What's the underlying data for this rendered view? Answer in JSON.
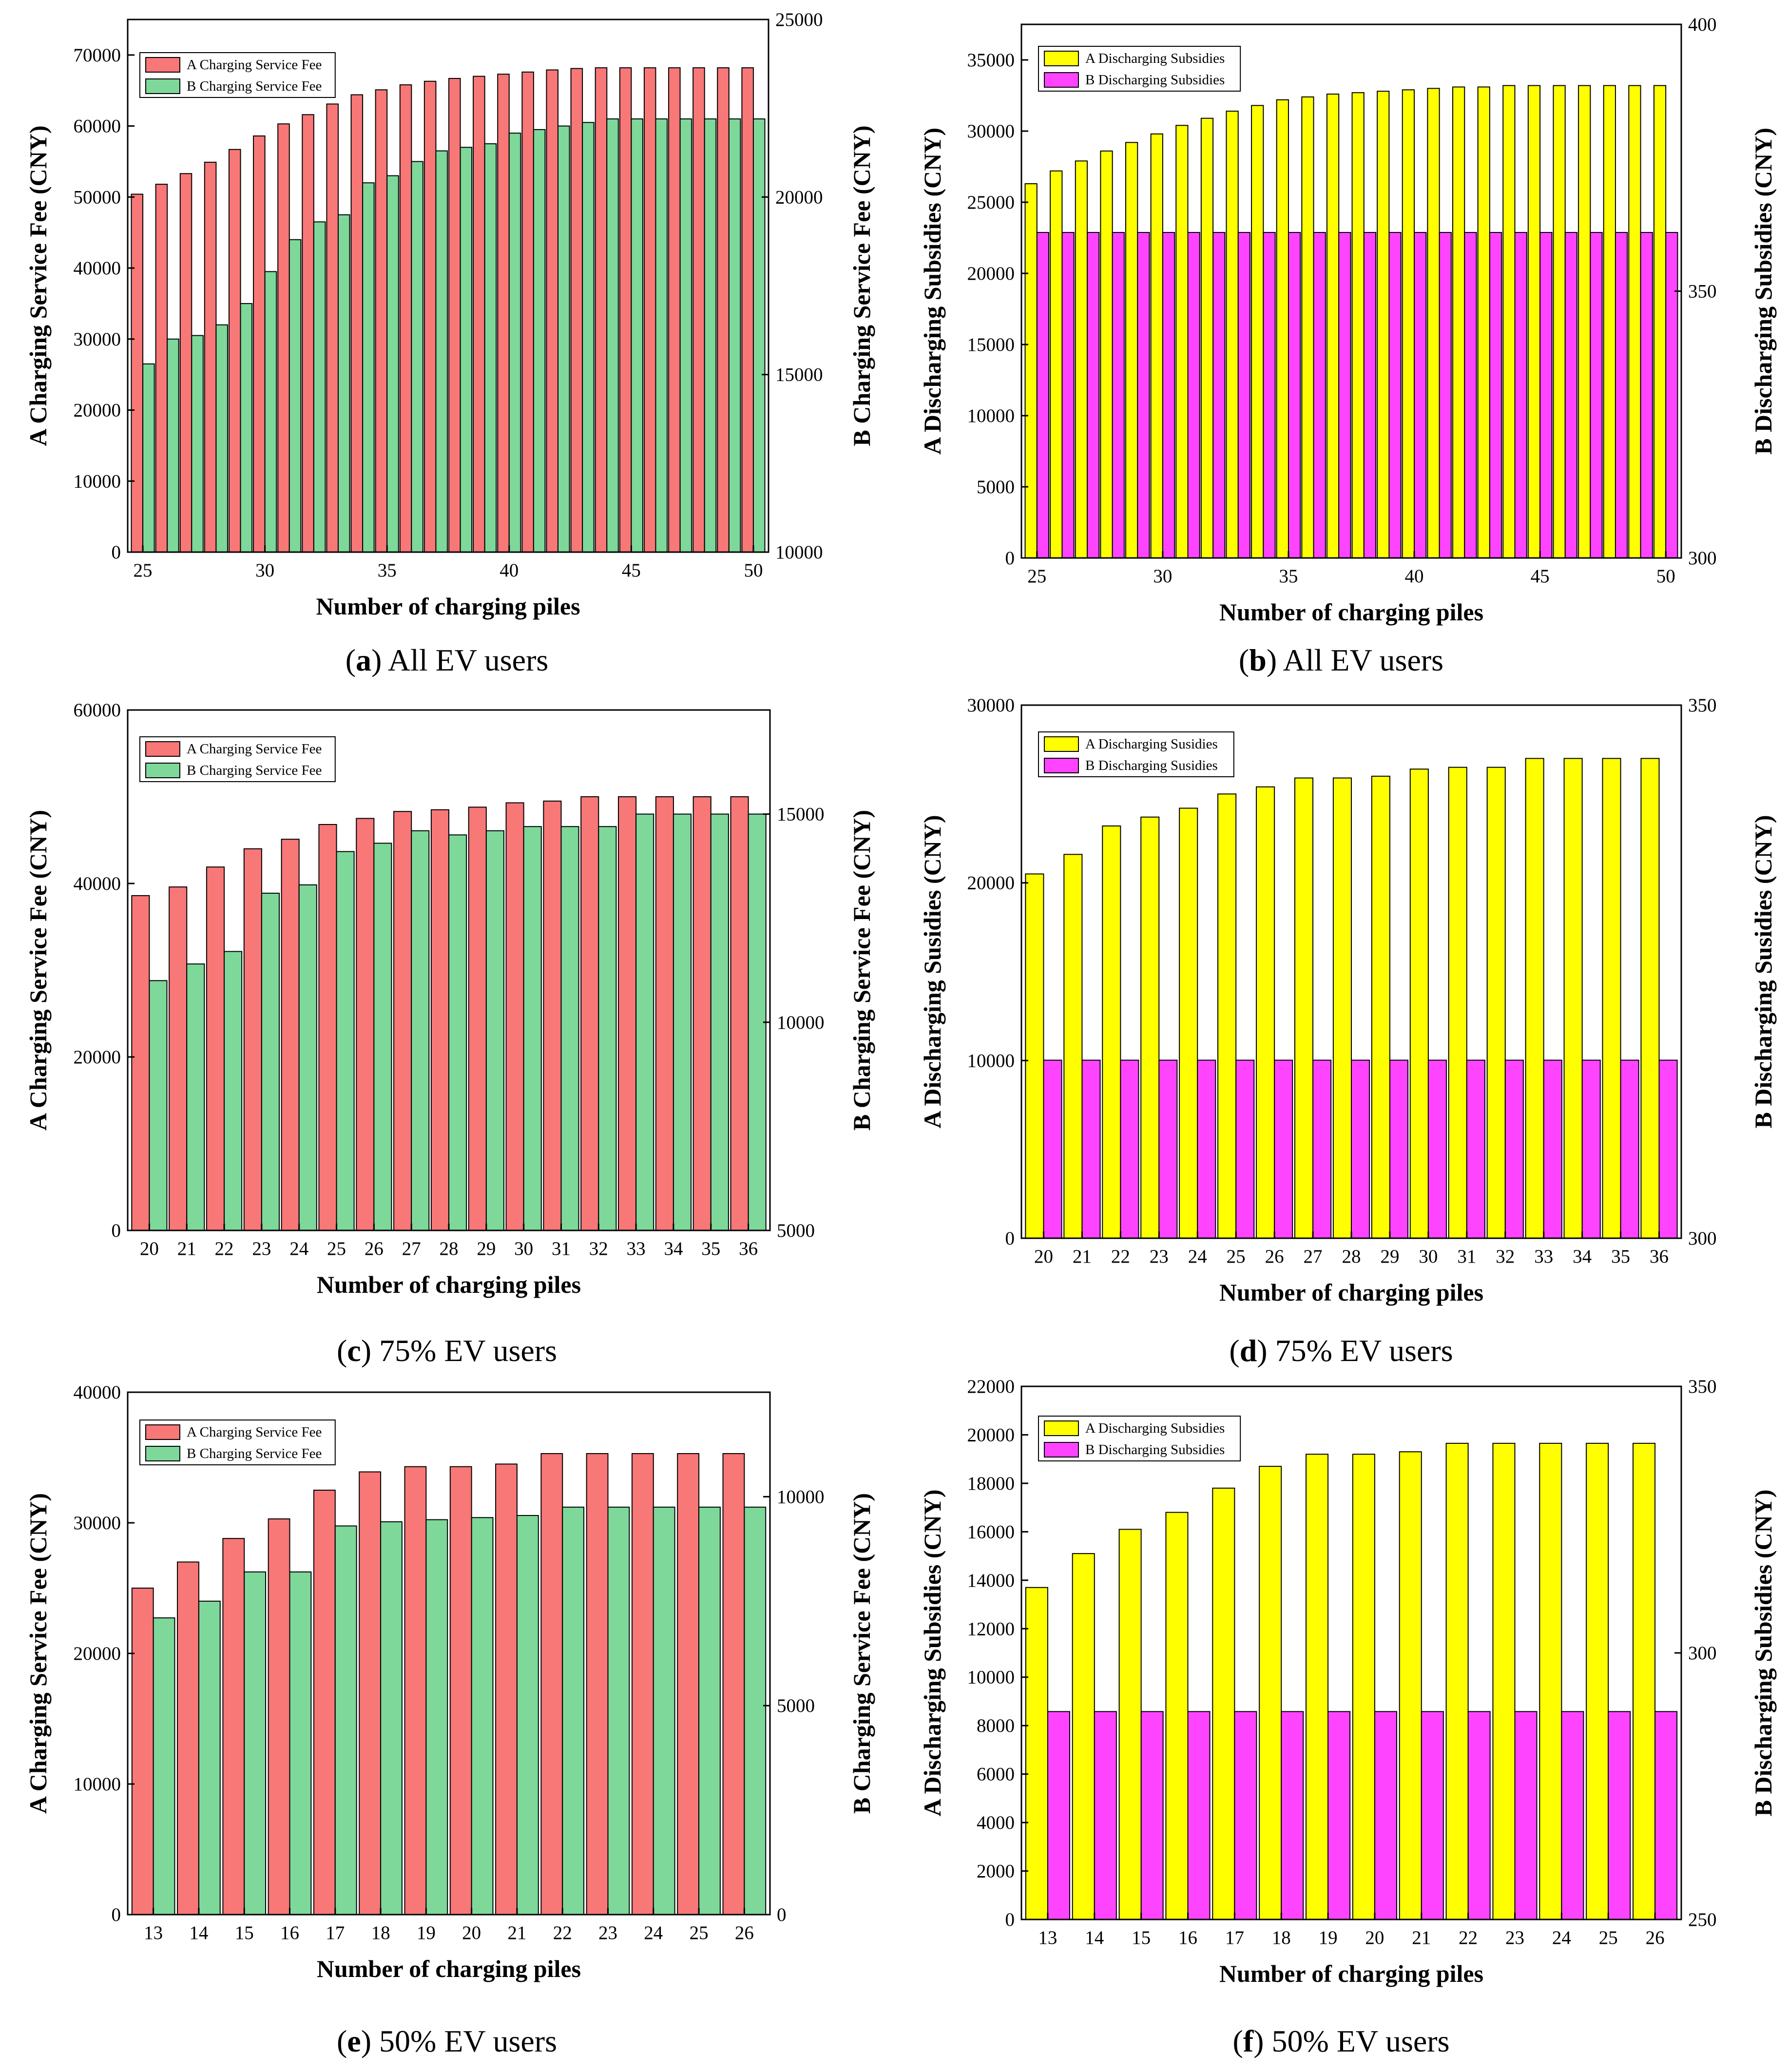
{
  "panels": [
    {
      "caption": {
        "letter": "a",
        "text": "All EV users"
      },
      "chart_data": {
        "type": "bar",
        "xlabel": "Number of charging piles",
        "ylabel_left": "A Charging Service Fee (CNY)",
        "ylabel_right": "B Charging Service Fee (CNY)",
        "x_ticks": [
          "25",
          "30",
          "35",
          "40",
          "45",
          "50"
        ],
        "categories": [
          "25",
          "26",
          "27",
          "28",
          "29",
          "30",
          "31",
          "32",
          "33",
          "34",
          "35",
          "36",
          "37",
          "38",
          "39",
          "40",
          "41",
          "42",
          "43",
          "44",
          "45",
          "46",
          "47",
          "48",
          "49",
          "50"
        ],
        "ylim_left": [
          0,
          75000
        ],
        "yticks_left": [
          0,
          10000,
          20000,
          30000,
          40000,
          50000,
          60000,
          70000
        ],
        "ylim_right": [
          10000,
          25000
        ],
        "yticks_right": [
          10000,
          15000,
          20000,
          25000
        ],
        "series": [
          {
            "name": "A Charging Service Fee",
            "axis": "left",
            "color": "#f87777",
            "values": [
              50400,
              51800,
              53300,
              54900,
              56700,
              58600,
              60300,
              61600,
              63100,
              64400,
              65100,
              65800,
              66300,
              66700,
              67000,
              67300,
              67600,
              67900,
              68100,
              68200,
              68200,
              68200,
              68200,
              68200,
              68200,
              68200
            ]
          },
          {
            "name": "B Charging Service Fee",
            "axis": "right",
            "color": "#7dd89a",
            "values": [
              15300,
              16000,
              16100,
              16400,
              17000,
              17900,
              18800,
              19300,
              19500,
              20400,
              20600,
              21000,
              21300,
              21400,
              21500,
              21800,
              21900,
              22000,
              22100,
              22200,
              22200,
              22200,
              22200,
              22200,
              22200,
              22200
            ]
          }
        ]
      }
    },
    {
      "caption": {
        "letter": "b",
        "text": "All EV users"
      },
      "chart_data": {
        "type": "bar",
        "xlabel": "Number of charging piles",
        "ylabel_left": "A Discharging Subsidies (CNY)",
        "ylabel_right": "B Discharging Subsidies (CNY)",
        "x_ticks": [
          "25",
          "30",
          "35",
          "40",
          "45",
          "50"
        ],
        "categories": [
          "25",
          "26",
          "27",
          "28",
          "29",
          "30",
          "31",
          "32",
          "33",
          "34",
          "35",
          "36",
          "37",
          "38",
          "39",
          "40",
          "41",
          "42",
          "43",
          "44",
          "45",
          "46",
          "47",
          "48",
          "49",
          "50"
        ],
        "ylim_left": [
          0,
          37500
        ],
        "yticks_left": [
          0,
          5000,
          10000,
          15000,
          20000,
          25000,
          30000,
          35000
        ],
        "ylim_right": [
          300,
          400
        ],
        "yticks_right": [
          300,
          350,
          400
        ],
        "series": [
          {
            "name": "A Discharging Subsidies",
            "axis": "left",
            "color": "#ffff00",
            "values": [
              26300,
              27200,
              27900,
              28600,
              29200,
              29800,
              30400,
              30900,
              31400,
              31800,
              32200,
              32400,
              32600,
              32700,
              32800,
              32900,
              33000,
              33100,
              33100,
              33200,
              33200,
              33200,
              33200,
              33200,
              33200,
              33200
            ]
          },
          {
            "name": "B Discharging Subsidies",
            "axis": "right",
            "color": "#ff44ff",
            "values": [
              361,
              361,
              361,
              361,
              361,
              361,
              361,
              361,
              361,
              361,
              361,
              361,
              361,
              361,
              361,
              361,
              361,
              361,
              361,
              361,
              361,
              361,
              361,
              361,
              361,
              361
            ]
          }
        ]
      }
    },
    {
      "caption": {
        "letter": "c",
        "text": "75% EV users"
      },
      "chart_data": {
        "type": "bar",
        "xlabel": "Number of charging piles",
        "ylabel_left": "A Charging Service Fee (CNY)",
        "ylabel_right": "B Charging Service Fee (CNY)",
        "x_ticks": [
          "20",
          "21",
          "22",
          "23",
          "24",
          "25",
          "26",
          "27",
          "28",
          "29",
          "30",
          "31",
          "32",
          "33",
          "34",
          "35",
          "36"
        ],
        "categories": [
          "20",
          "21",
          "22",
          "23",
          "24",
          "25",
          "26",
          "27",
          "28",
          "29",
          "30",
          "31",
          "32",
          "33",
          "34",
          "35",
          "36"
        ],
        "ylim_left": [
          0,
          60000
        ],
        "yticks_left": [
          0,
          20000,
          40000,
          60000
        ],
        "ylim_right": [
          5000,
          17500
        ],
        "yticks_right": [
          5000,
          10000,
          15000
        ],
        "series": [
          {
            "name": "A Charging Service Fee",
            "axis": "left",
            "color": "#f87777",
            "values": [
              38600,
              39600,
              41900,
              44000,
              45100,
              46800,
              47500,
              48300,
              48500,
              48800,
              49300,
              49500,
              50000,
              50000,
              50000,
              50000,
              50000
            ]
          },
          {
            "name": "B Charging Service Fee",
            "axis": "right",
            "color": "#7dd89a",
            "values": [
              11000,
              11400,
              11700,
              13100,
              13300,
              14100,
              14300,
              14600,
              14500,
              14600,
              14700,
              14700,
              14700,
              15000,
              15000,
              15000,
              15000
            ]
          }
        ]
      }
    },
    {
      "caption": {
        "letter": "d",
        "text": "75% EV users"
      },
      "chart_data": {
        "type": "bar",
        "xlabel": "Number of charging piles",
        "ylabel_left": "A Discharging Susidies (CNY)",
        "ylabel_right": "B Discharging Susidies (CNY)",
        "x_ticks": [
          "20",
          "21",
          "22",
          "23",
          "24",
          "25",
          "26",
          "27",
          "28",
          "29",
          "30",
          "31",
          "32",
          "33",
          "34",
          "35",
          "36"
        ],
        "categories": [
          "20",
          "21",
          "22",
          "23",
          "24",
          "25",
          "26",
          "27",
          "28",
          "29",
          "30",
          "31",
          "32",
          "33",
          "34",
          "35",
          "36"
        ],
        "ylim_left": [
          0,
          30000
        ],
        "yticks_left": [
          0,
          10000,
          20000,
          30000
        ],
        "ylim_right": [
          300,
          350
        ],
        "yticks_right": [
          300,
          350
        ],
        "series": [
          {
            "name": "A Discharging Susidies",
            "axis": "left",
            "color": "#ffff00",
            "values": [
              20500,
              21600,
              23200,
              23700,
              24200,
              25000,
              25400,
              25900,
              25900,
              26000,
              26400,
              26500,
              26500,
              27000,
              27000,
              27000,
              27000
            ]
          },
          {
            "name": "B Discharging Susidies",
            "axis": "right",
            "color": "#ff44ff",
            "values": [
              316.7,
              316.7,
              316.7,
              316.7,
              316.7,
              316.7,
              316.7,
              316.7,
              316.7,
              316.7,
              316.7,
              316.7,
              316.7,
              316.7,
              316.7,
              316.7,
              316.7
            ]
          }
        ]
      }
    },
    {
      "caption": {
        "letter": "e",
        "text": "50% EV users"
      },
      "chart_data": {
        "type": "bar",
        "xlabel": "Number of charging piles",
        "ylabel_left": "A Charging Service Fee (CNY)",
        "ylabel_right": "B Charging Service Fee (CNY)",
        "x_ticks": [
          "13",
          "14",
          "15",
          "16",
          "17",
          "18",
          "19",
          "20",
          "21",
          "22",
          "23",
          "24",
          "25",
          "26"
        ],
        "categories": [
          "13",
          "14",
          "15",
          "16",
          "17",
          "18",
          "19",
          "20",
          "21",
          "22",
          "23",
          "24",
          "25",
          "26"
        ],
        "ylim_left": [
          0,
          40000
        ],
        "yticks_left": [
          0,
          10000,
          20000,
          30000,
          40000
        ],
        "ylim_right": [
          0,
          12500
        ],
        "yticks_right": [
          0,
          5000,
          10000
        ],
        "series": [
          {
            "name": "A Charging Service Fee",
            "axis": "left",
            "color": "#f87777",
            "values": [
              25000,
              27000,
              28800,
              30300,
              32500,
              33900,
              34300,
              34300,
              34500,
              35300,
              35300,
              35300,
              35300,
              35300
            ]
          },
          {
            "name": "B Charging Service Fee",
            "axis": "right",
            "color": "#7dd89a",
            "values": [
              7100,
              7500,
              8200,
              8200,
              9300,
              9400,
              9450,
              9500,
              9550,
              9750,
              9750,
              9750,
              9750,
              9750
            ]
          }
        ]
      }
    },
    {
      "caption": {
        "letter": "f",
        "text": "50% EV users"
      },
      "chart_data": {
        "type": "bar",
        "xlabel": "Number of charging piles",
        "ylabel_left": "A Discharging Subsidies (CNY)",
        "ylabel_right": "B Discharging Subsidies (CNY)",
        "x_ticks": [
          "13",
          "14",
          "15",
          "16",
          "17",
          "18",
          "19",
          "20",
          "21",
          "22",
          "23",
          "24",
          "25",
          "26"
        ],
        "categories": [
          "13",
          "14",
          "15",
          "16",
          "17",
          "18",
          "19",
          "20",
          "21",
          "22",
          "23",
          "24",
          "25",
          "26"
        ],
        "ylim_left": [
          0,
          22000
        ],
        "yticks_left": [
          0,
          2000,
          4000,
          6000,
          8000,
          10000,
          12000,
          14000,
          16000,
          18000,
          20000,
          22000
        ],
        "ylim_right": [
          250,
          350
        ],
        "yticks_right": [
          250,
          300,
          350
        ],
        "series": [
          {
            "name": "A Discharging Subsidies",
            "axis": "left",
            "color": "#ffff00",
            "values": [
              13700,
              15100,
              16100,
              16800,
              17800,
              18700,
              19200,
              19200,
              19300,
              19650,
              19650,
              19650,
              19650,
              19650
            ]
          },
          {
            "name": "B Discharging Subsidies",
            "axis": "right",
            "color": "#ff44ff",
            "values": [
              289,
              289,
              289,
              289,
              289,
              289,
              289,
              289,
              289,
              289,
              289,
              289,
              289,
              289
            ]
          }
        ]
      }
    }
  ]
}
